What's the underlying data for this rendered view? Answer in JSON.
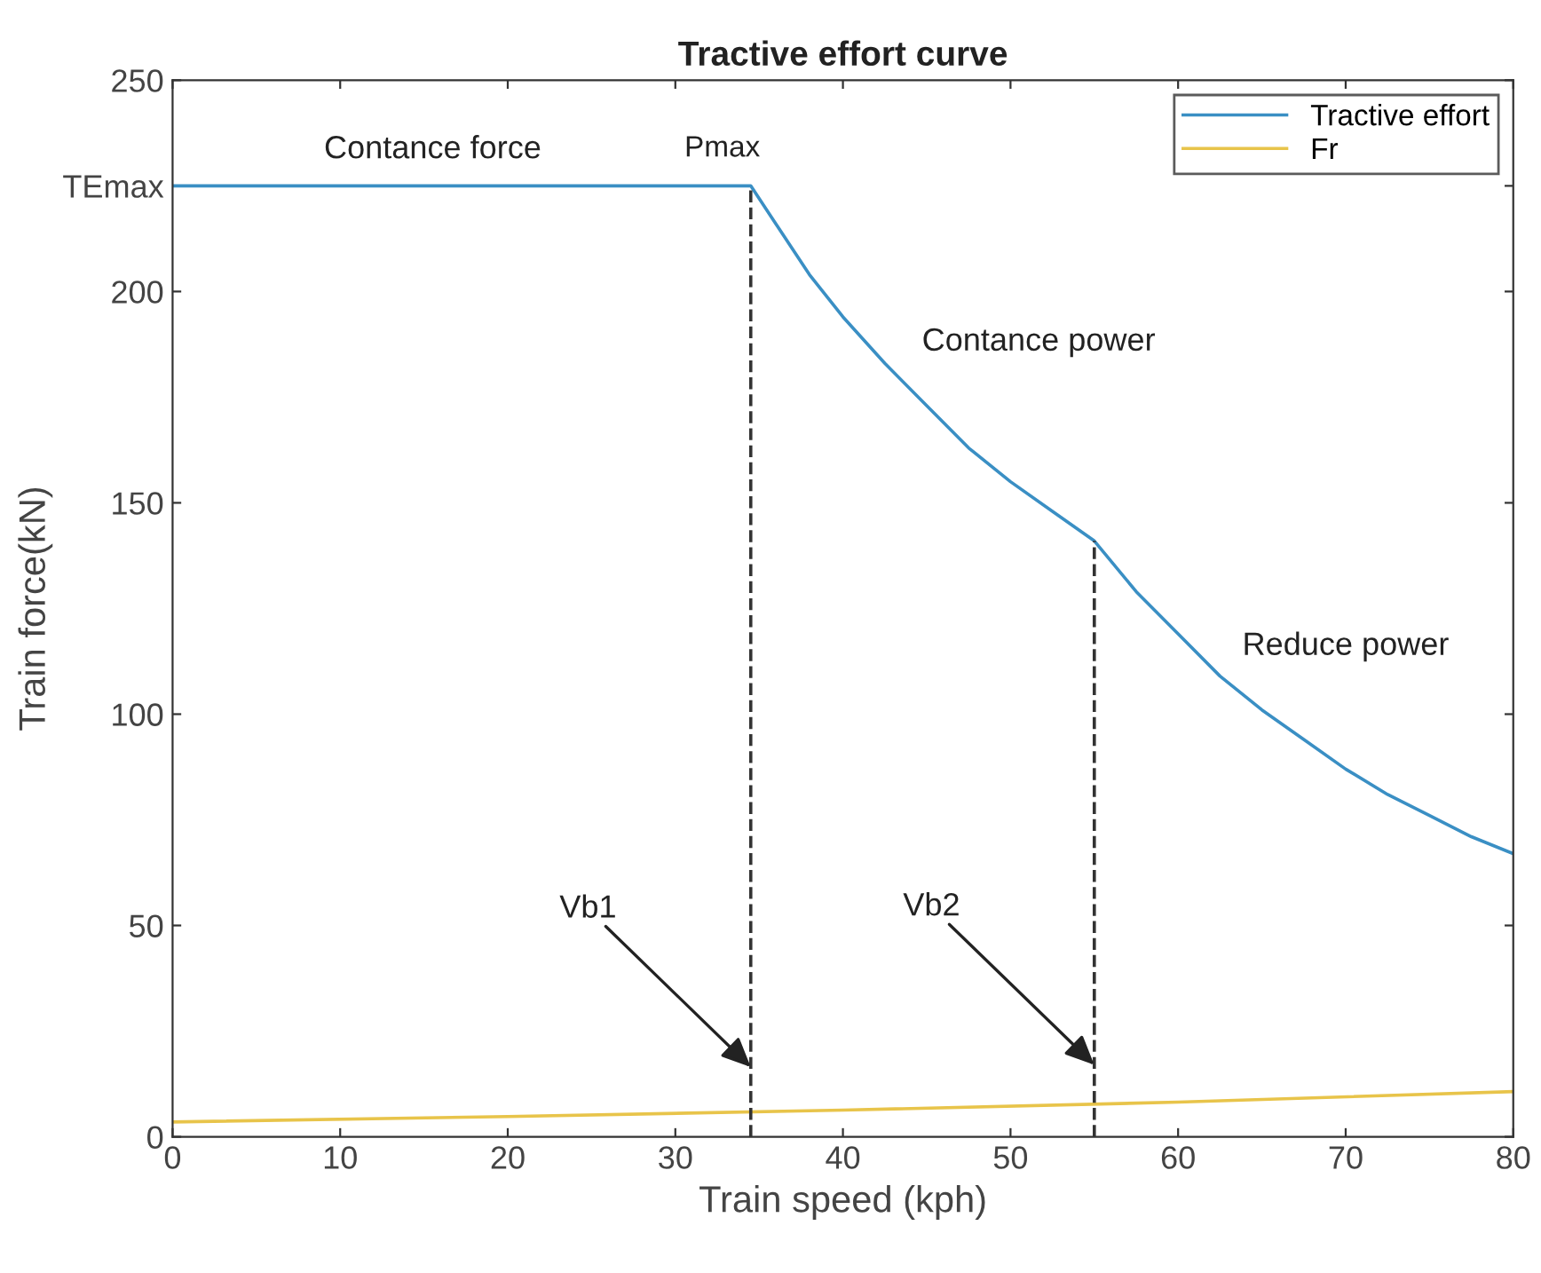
{
  "chart_data": {
    "type": "line",
    "title": "Tractive effort curve",
    "xlabel": "Train speed (kph)",
    "ylabel": "Train force(kN)",
    "xlim": [
      0,
      80
    ],
    "ylim": [
      0,
      250
    ],
    "xticks": [
      0,
      10,
      20,
      30,
      40,
      50,
      60,
      70,
      80
    ],
    "yticks": [
      0,
      50,
      100,
      150,
      200,
      {
        "value": 225,
        "label": "TEmax"
      },
      250
    ],
    "grid": false,
    "legend": "top right",
    "line_style": "solid",
    "marker": "none",
    "series": [
      {
        "name": "Tractive effort",
        "color": "#3a8fc4",
        "x": [
          0,
          34.5,
          36,
          38,
          40,
          42.5,
          45,
          47.5,
          50,
          52.5,
          55,
          57.5,
          60,
          62.5,
          65,
          67.5,
          70,
          72.5,
          75,
          77.5,
          80
        ],
        "values": [
          225,
          225,
          216,
          204,
          194,
          183,
          173,
          163,
          155,
          148,
          141,
          129,
          119,
          109,
          101,
          94,
          87,
          81,
          76,
          71,
          67
        ]
      },
      {
        "name": "Fr",
        "color": "#e8c44a",
        "x": [
          0,
          20,
          40,
          60,
          80
        ],
        "values": [
          3.5,
          4.8,
          6.3,
          8.2,
          10.7
        ]
      }
    ],
    "ref_lines": [
      {
        "axis": "x",
        "value": 34.5,
        "color": "#333333",
        "line_style": "dashed"
      },
      {
        "axis": "x",
        "value": 55,
        "color": "#333333",
        "line_style": "dashed"
      }
    ],
    "annotations": [
      "Contance force",
      "Pmax",
      "Contance power",
      "Reduce power",
      {
        "text": "Vb1",
        "x": 34.5,
        "y": 16.5
      },
      {
        "text": "Vb2",
        "x": 55,
        "y": 17
      }
    ]
  }
}
